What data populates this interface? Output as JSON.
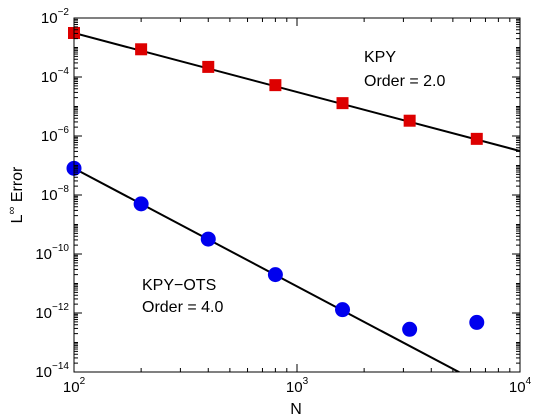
{
  "chart_data": {
    "type": "scatter",
    "xscale": "log",
    "yscale": "log",
    "xlim": [
      100,
      10000
    ],
    "ylim": [
      1e-14,
      0.01
    ],
    "xlabel": "N",
    "ylabel_main": "L",
    "ylabel_sup": "∞",
    "ylabel_suffix": " Error",
    "x_ticks": [
      {
        "base": "10",
        "exp": "2",
        "value": 100
      },
      {
        "base": "10",
        "exp": "3",
        "value": 1000
      },
      {
        "base": "10",
        "exp": "4",
        "value": 10000
      }
    ],
    "y_ticks": [
      {
        "base": "10",
        "exp": "−2",
        "value": 0.01
      },
      {
        "base": "10",
        "exp": "−4",
        "value": 0.0001
      },
      {
        "base": "10",
        "exp": "−6",
        "value": 1e-06
      },
      {
        "base": "10",
        "exp": "−8",
        "value": 1e-08
      },
      {
        "base": "10",
        "exp": "−10",
        "value": 1e-10
      },
      {
        "base": "10",
        "exp": "−12",
        "value": 1e-12
      },
      {
        "base": "10",
        "exp": "−14",
        "value": 1e-14
      }
    ],
    "grid": false,
    "series": [
      {
        "marker": "square",
        "color": "#dd0000",
        "x": [
          100,
          200,
          400,
          800,
          1600,
          3200,
          6400
        ],
        "y": [
          0.0031,
          0.00087,
          0.00022,
          5.3e-05,
          1.3e-05,
          3.3e-06,
          8e-07
        ],
        "fit": {
          "x": [
            100,
            10000
          ],
          "y": [
            0.0031,
            3.1e-07
          ]
        }
      },
      {
        "marker": "circle",
        "color": "#0000ee",
        "x": [
          100,
          200,
          400,
          800,
          1600,
          3200,
          6400
        ],
        "y": [
          8e-08,
          5e-09,
          3.2e-10,
          2e-11,
          1.3e-12,
          2.8e-13,
          4.8e-13
        ],
        "fit": {
          "x": [
            100,
            10000
          ],
          "y": [
            8e-08,
            8e-16
          ]
        }
      }
    ],
    "annotations": [
      {
        "lines": [
          "KPY",
          "Order = 2.0"
        ]
      },
      {
        "lines": [
          "KPY−OTS",
          "Order = 4.0"
        ]
      }
    ]
  }
}
